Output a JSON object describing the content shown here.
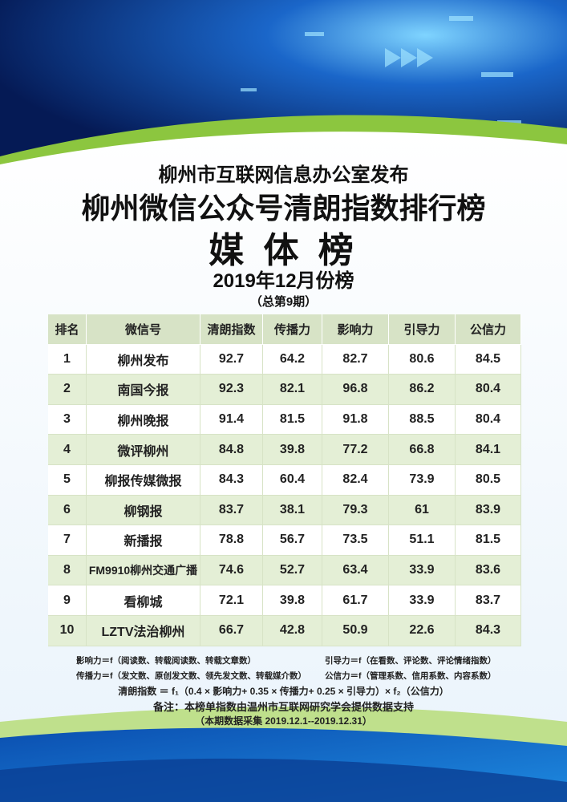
{
  "header": {
    "publisher": "柳州市互联网信息办公室发布",
    "title": "柳州微信公众号清朗指数排行榜",
    "subtitle": "媒 体 榜",
    "period": "2019年12月份榜",
    "issue": "（总第9期）"
  },
  "table": {
    "columns": [
      "排名",
      "微信号",
      "清朗指数",
      "传播力",
      "影响力",
      "引导力",
      "公信力"
    ],
    "rows": [
      [
        1,
        "柳州发布",
        92.7,
        64.2,
        82.7,
        80.6,
        84.5
      ],
      [
        2,
        "南国今报",
        92.3,
        82.1,
        96.8,
        86.2,
        80.4
      ],
      [
        3,
        "柳州晚报",
        91.4,
        81.5,
        91.8,
        88.5,
        80.4
      ],
      [
        4,
        "微评柳州",
        84.8,
        39.8,
        77.2,
        66.8,
        84.1
      ],
      [
        5,
        "柳报传媒微报",
        84.3,
        60.4,
        82.4,
        73.9,
        80.5
      ],
      [
        6,
        "柳钢报",
        83.7,
        38.1,
        79.3,
        61,
        83.9
      ],
      [
        7,
        "新播报",
        78.8,
        56.7,
        73.5,
        51.1,
        81.5
      ],
      [
        8,
        "FM9910柳州交通广播",
        74.6,
        52.7,
        63.4,
        33.9,
        83.6
      ],
      [
        9,
        "看柳城",
        72.1,
        39.8,
        61.7,
        33.9,
        83.7
      ],
      [
        10,
        "LZTV法治柳州",
        66.7,
        42.8,
        50.9,
        22.6,
        84.3
      ]
    ]
  },
  "notes": {
    "influence": "影响力＝f（阅读数、转载阅读数、转载文章数）",
    "guidance": "引导力＝f（在看数、评论数、评论情绪指数）",
    "spread": "传播力＝f（发文数、原创发文数、领先发文数、转载媒介数）",
    "credibility": "公信力＝f（管理系数、信用系数、内容系数）",
    "formula": "清朗指数 ＝ f₁（0.4 × 影响力+ 0.35 × 传播力+ 0.25 × 引导力）× f₂（公信力）",
    "remark": "备注：本榜单指数由温州市互联网研究学会提供数据支持",
    "data_period": "（本期数据采集 2019.12.1--2019.12.31）"
  }
}
